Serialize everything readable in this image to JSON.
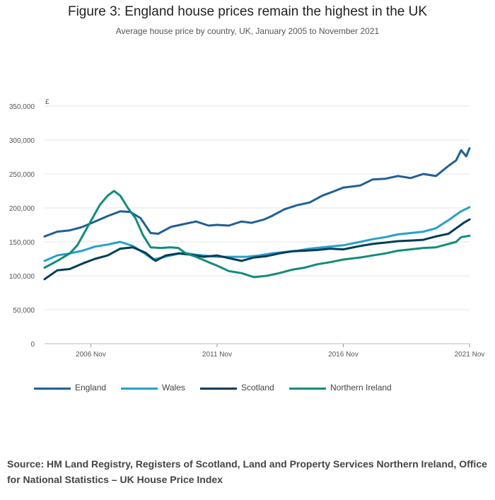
{
  "title": "Figure 3: England house prices remain the highest in the UK",
  "subtitle": "Average house price by country, UK, January 2005 to November 2021",
  "source": "Source: HM Land Registry, Registers of Scotland, Land and Property Services Northern Ireland, Office for National Statistics – UK House Price Index",
  "chart_data": {
    "type": "line",
    "title": "Figure 3: England house prices remain the highest in the UK",
    "subtitle": "Average house price by country, UK, January 2005 to November 2021",
    "ylabel": "£",
    "xlabel": "",
    "x_range": [
      "2005 Jan",
      "2021 Nov"
    ],
    "ylim": [
      0,
      350000
    ],
    "yticks": [
      0,
      50000,
      100000,
      150000,
      200000,
      250000,
      300000,
      350000
    ],
    "ytick_labels": [
      "0",
      "50,000",
      "100,000",
      "150,000",
      "200,000",
      "250,000",
      "300,000",
      "350,000"
    ],
    "xtick_labels": [
      "2006 Nov",
      "2011 Nov",
      "2016 Nov",
      "2021 Nov"
    ],
    "xtick_years": [
      2006.833,
      2011.833,
      2016.833,
      2021.833
    ],
    "grid": true,
    "legend_position": "bottom",
    "series": [
      {
        "name": "England",
        "color": "#206095",
        "points": [
          [
            2005.0,
            158000
          ],
          [
            2005.5,
            165000
          ],
          [
            2006.0,
            167000
          ],
          [
            2006.5,
            172000
          ],
          [
            2007.0,
            180000
          ],
          [
            2007.5,
            188000
          ],
          [
            2008.0,
            195000
          ],
          [
            2008.4,
            194000
          ],
          [
            2008.8,
            185000
          ],
          [
            2009.2,
            163000
          ],
          [
            2009.5,
            162000
          ],
          [
            2010.0,
            172000
          ],
          [
            2010.5,
            176000
          ],
          [
            2011.0,
            180000
          ],
          [
            2011.5,
            174000
          ],
          [
            2011.833,
            175000
          ],
          [
            2012.3,
            174000
          ],
          [
            2012.8,
            180000
          ],
          [
            2013.2,
            178000
          ],
          [
            2013.7,
            183000
          ],
          [
            2014.0,
            188000
          ],
          [
            2014.5,
            198000
          ],
          [
            2015.0,
            204000
          ],
          [
            2015.5,
            208000
          ],
          [
            2016.0,
            218000
          ],
          [
            2016.5,
            225000
          ],
          [
            2016.833,
            230000
          ],
          [
            2017.5,
            233000
          ],
          [
            2018.0,
            242000
          ],
          [
            2018.5,
            243000
          ],
          [
            2019.0,
            247000
          ],
          [
            2019.5,
            244000
          ],
          [
            2020.0,
            250000
          ],
          [
            2020.5,
            247000
          ],
          [
            2021.0,
            262000
          ],
          [
            2021.3,
            270000
          ],
          [
            2021.5,
            285000
          ],
          [
            2021.7,
            276000
          ],
          [
            2021.833,
            288000
          ]
        ]
      },
      {
        "name": "Wales",
        "color": "#27a0cc",
        "points": [
          [
            2005.0,
            122000
          ],
          [
            2005.5,
            130000
          ],
          [
            2006.0,
            133000
          ],
          [
            2006.5,
            137000
          ],
          [
            2007.0,
            143000
          ],
          [
            2007.5,
            146000
          ],
          [
            2008.0,
            150000
          ],
          [
            2008.5,
            144000
          ],
          [
            2009.0,
            132000
          ],
          [
            2009.3,
            124000
          ],
          [
            2010.0,
            130000
          ],
          [
            2010.5,
            134000
          ],
          [
            2011.0,
            131000
          ],
          [
            2011.833,
            128000
          ],
          [
            2012.5,
            128000
          ],
          [
            2013.0,
            128000
          ],
          [
            2013.5,
            130000
          ],
          [
            2014.0,
            133000
          ],
          [
            2014.5,
            135000
          ],
          [
            2015.0,
            137000
          ],
          [
            2015.5,
            140000
          ],
          [
            2016.0,
            142000
          ],
          [
            2016.833,
            145000
          ],
          [
            2017.5,
            150000
          ],
          [
            2018.0,
            154000
          ],
          [
            2018.5,
            157000
          ],
          [
            2019.0,
            161000
          ],
          [
            2019.5,
            163000
          ],
          [
            2020.0,
            165000
          ],
          [
            2020.5,
            170000
          ],
          [
            2021.0,
            182000
          ],
          [
            2021.3,
            190000
          ],
          [
            2021.5,
            195000
          ],
          [
            2021.833,
            201000
          ]
        ]
      },
      {
        "name": "Scotland",
        "color": "#003c57",
        "points": [
          [
            2005.0,
            95000
          ],
          [
            2005.5,
            108000
          ],
          [
            2006.0,
            110000
          ],
          [
            2006.5,
            118000
          ],
          [
            2007.0,
            125000
          ],
          [
            2007.5,
            130000
          ],
          [
            2008.0,
            140000
          ],
          [
            2008.5,
            142000
          ],
          [
            2009.0,
            134000
          ],
          [
            2009.4,
            122000
          ],
          [
            2009.8,
            130000
          ],
          [
            2010.3,
            133000
          ],
          [
            2010.8,
            131000
          ],
          [
            2011.3,
            128000
          ],
          [
            2011.833,
            130000
          ],
          [
            2012.3,
            126000
          ],
          [
            2012.8,
            122000
          ],
          [
            2013.3,
            127000
          ],
          [
            2013.8,
            129000
          ],
          [
            2014.3,
            133000
          ],
          [
            2014.8,
            136000
          ],
          [
            2015.3,
            137000
          ],
          [
            2015.8,
            138000
          ],
          [
            2016.3,
            140000
          ],
          [
            2016.833,
            139000
          ],
          [
            2017.5,
            144000
          ],
          [
            2018.0,
            147000
          ],
          [
            2018.5,
            149000
          ],
          [
            2019.0,
            151000
          ],
          [
            2019.5,
            152000
          ],
          [
            2020.0,
            153000
          ],
          [
            2020.5,
            158000
          ],
          [
            2021.0,
            162000
          ],
          [
            2021.3,
            170000
          ],
          [
            2021.6,
            178000
          ],
          [
            2021.833,
            183000
          ]
        ]
      },
      {
        "name": "Northern Ireland",
        "color": "#118c7b",
        "points": [
          [
            2005.0,
            112000
          ],
          [
            2005.5,
            122000
          ],
          [
            2006.0,
            133000
          ],
          [
            2006.3,
            145000
          ],
          [
            2006.6,
            165000
          ],
          [
            2006.9,
            185000
          ],
          [
            2007.2,
            205000
          ],
          [
            2007.5,
            218000
          ],
          [
            2007.75,
            225000
          ],
          [
            2008.0,
            218000
          ],
          [
            2008.3,
            200000
          ],
          [
            2008.6,
            185000
          ],
          [
            2008.9,
            160000
          ],
          [
            2009.2,
            142000
          ],
          [
            2009.6,
            141000
          ],
          [
            2010.0,
            142000
          ],
          [
            2010.3,
            141000
          ],
          [
            2010.6,
            133000
          ],
          [
            2011.0,
            128000
          ],
          [
            2011.5,
            120000
          ],
          [
            2011.833,
            115000
          ],
          [
            2012.3,
            107000
          ],
          [
            2012.8,
            104000
          ],
          [
            2013.3,
            98000
          ],
          [
            2013.8,
            100000
          ],
          [
            2014.3,
            104000
          ],
          [
            2014.8,
            109000
          ],
          [
            2015.3,
            112000
          ],
          [
            2015.8,
            117000
          ],
          [
            2016.3,
            120000
          ],
          [
            2016.833,
            124000
          ],
          [
            2017.5,
            127000
          ],
          [
            2018.0,
            130000
          ],
          [
            2018.5,
            133000
          ],
          [
            2019.0,
            137000
          ],
          [
            2019.5,
            139000
          ],
          [
            2020.0,
            141000
          ],
          [
            2020.5,
            142000
          ],
          [
            2021.0,
            147000
          ],
          [
            2021.3,
            150000
          ],
          [
            2021.5,
            157000
          ],
          [
            2021.833,
            159000
          ]
        ]
      }
    ]
  }
}
